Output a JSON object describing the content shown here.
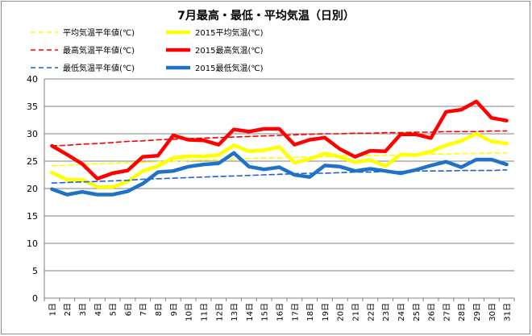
{
  "chart_data": {
    "type": "line",
    "title": "7月最高・最低・平均気温（日別）",
    "xlabel": "",
    "ylabel": "",
    "ylim": [
      0,
      40
    ],
    "yticks": [
      0,
      5,
      10,
      15,
      20,
      25,
      30,
      35,
      40
    ],
    "grid": "horizontal",
    "legend_position": "top",
    "categories": [
      "1日",
      "2日",
      "3日",
      "4日",
      "5日",
      "6日",
      "7日",
      "8日",
      "9日",
      "10日",
      "11日",
      "12日",
      "13日",
      "14日",
      "15日",
      "16日",
      "17日",
      "18日",
      "19日",
      "20日",
      "21日",
      "22日",
      "23日",
      "24日",
      "25日",
      "26日",
      "27日",
      "28日",
      "29日",
      "30日",
      "31日"
    ],
    "series": [
      {
        "name": "平均気温平年値(℃)",
        "color": "#ffff00",
        "style": "dashed",
        "values": [
          24.1,
          24.3,
          24.4,
          24.5,
          24.6,
          24.7,
          24.8,
          24.9,
          25.0,
          25.1,
          25.2,
          25.3,
          25.4,
          25.5,
          25.6,
          25.6,
          25.7,
          25.8,
          25.8,
          25.9,
          26.0,
          26.0,
          26.1,
          26.1,
          26.2,
          26.3,
          26.3,
          26.4,
          26.4,
          26.5,
          26.5
        ]
      },
      {
        "name": "2015平均気温(℃)",
        "color": "#ffff00",
        "style": "solid",
        "values": [
          22.9,
          21.6,
          21.6,
          20.3,
          20.3,
          21.3,
          23.2,
          24.1,
          25.6,
          25.9,
          25.9,
          26.1,
          27.9,
          26.8,
          27.0,
          27.6,
          24.7,
          25.4,
          26.4,
          25.8,
          24.8,
          25.2,
          24.1,
          26.2,
          26.1,
          26.8,
          27.9,
          28.7,
          30.0,
          28.6,
          28.2
        ]
      },
      {
        "name": "最高気温平年値(℃)",
        "color": "#ff0000",
        "style": "dashed",
        "values": [
          27.8,
          27.9,
          28.1,
          28.2,
          28.4,
          28.6,
          28.7,
          28.9,
          29.0,
          29.1,
          29.2,
          29.3,
          29.4,
          29.5,
          29.6,
          29.7,
          29.8,
          29.9,
          30.0,
          30.0,
          30.1,
          30.1,
          30.2,
          30.2,
          30.3,
          30.3,
          30.4,
          30.4,
          30.4,
          30.5,
          30.5
        ]
      },
      {
        "name": "2015最高気温(℃)",
        "color": "#ff0000",
        "style": "solid",
        "values": [
          27.8,
          26.2,
          24.5,
          21.8,
          22.8,
          23.3,
          25.8,
          26.0,
          29.7,
          28.9,
          28.8,
          28.0,
          30.8,
          30.4,
          30.9,
          30.9,
          28.0,
          28.9,
          29.3,
          27.2,
          25.8,
          26.9,
          26.8,
          29.9,
          29.9,
          29.2,
          34.0,
          34.4,
          35.9,
          32.9,
          32.4
        ]
      },
      {
        "name": "最低気温平年値(℃)",
        "color": "#1f5fd8",
        "style": "dashed",
        "values": [
          21.0,
          21.1,
          21.2,
          21.3,
          21.4,
          21.5,
          21.7,
          21.8,
          21.9,
          22.0,
          22.1,
          22.2,
          22.3,
          22.4,
          22.5,
          22.6,
          22.7,
          22.8,
          22.8,
          22.9,
          23.0,
          23.0,
          23.1,
          23.1,
          23.2,
          23.2,
          23.2,
          23.3,
          23.3,
          23.3,
          23.4
        ]
      },
      {
        "name": "2015最低気温(℃)",
        "color": "#1f72c6",
        "style": "solid",
        "values": [
          19.9,
          18.9,
          19.4,
          18.9,
          18.9,
          19.5,
          20.9,
          23.0,
          23.2,
          24.0,
          24.4,
          24.6,
          26.5,
          24.0,
          23.5,
          23.9,
          22.5,
          22.1,
          24.2,
          24.0,
          23.2,
          23.6,
          23.2,
          22.8,
          23.4,
          24.2,
          24.9,
          23.9,
          25.3,
          25.3,
          24.4
        ]
      }
    ]
  }
}
